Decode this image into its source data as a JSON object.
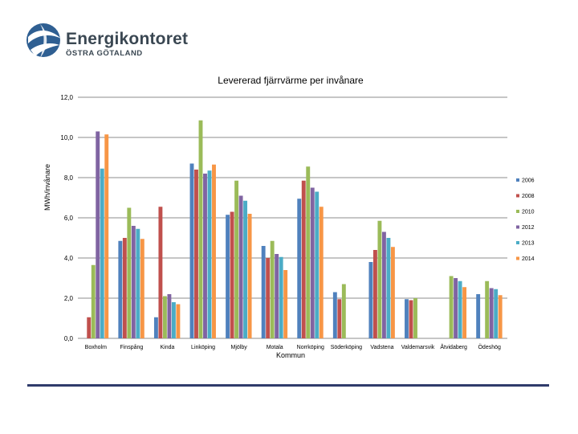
{
  "logo": {
    "name": "Energikontoret",
    "subtitle": "ÖSTRA GÖTALAND"
  },
  "chart_data": {
    "type": "bar",
    "title": "Levererad fjärrvärme per invånare",
    "xlabel": "Kommun",
    "ylabel": "MWh/invånare",
    "ylim": [
      0,
      12
    ],
    "yticks": [
      "0,0",
      "2,0",
      "4,0",
      "6,0",
      "8,0",
      "10,0",
      "12,0"
    ],
    "grid": true,
    "legend_position": "right",
    "categories": [
      "Boxholm",
      "Finspång",
      "Kinda",
      "Linköping",
      "Mjölby",
      "Motala",
      "Norrköping",
      "Söderköping",
      "Vadstena",
      "Valdemarsvik",
      "Åtvidaberg",
      "Ödeshög"
    ],
    "series": [
      {
        "name": "2006",
        "color": "#4f81bd",
        "values": [
          null,
          4.85,
          1.05,
          8.7,
          6.15,
          4.6,
          6.95,
          2.3,
          3.8,
          1.95,
          null,
          2.2
        ]
      },
      {
        "name": "2008",
        "color": "#c0504d",
        "values": [
          1.05,
          5.0,
          6.55,
          8.4,
          6.3,
          4.0,
          7.85,
          1.95,
          4.4,
          1.9,
          null,
          null
        ]
      },
      {
        "name": "2010",
        "color": "#9bbb59",
        "values": [
          3.65,
          6.5,
          2.1,
          10.85,
          7.85,
          4.85,
          8.55,
          2.7,
          5.85,
          2.0,
          3.1,
          2.85
        ]
      },
      {
        "name": "2012",
        "color": "#8064a2",
        "values": [
          10.3,
          5.6,
          2.2,
          8.2,
          7.1,
          4.2,
          7.5,
          null,
          5.3,
          null,
          3.0,
          2.5
        ]
      },
      {
        "name": "2013",
        "color": "#4bacc6",
        "values": [
          8.45,
          5.45,
          1.8,
          8.35,
          6.85,
          4.05,
          7.3,
          null,
          5.0,
          null,
          2.85,
          2.45
        ]
      },
      {
        "name": "2014",
        "color": "#f79646",
        "values": [
          10.15,
          4.95,
          1.7,
          8.65,
          6.2,
          3.4,
          6.55,
          null,
          4.55,
          null,
          2.55,
          2.15
        ]
      }
    ]
  }
}
